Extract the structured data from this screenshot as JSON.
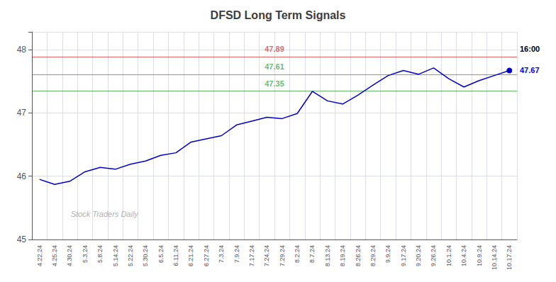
{
  "chart_data": {
    "type": "line",
    "title": "DFSD Long Term Signals",
    "categories": [
      "4.22.24",
      "4.25.24",
      "4.30.24",
      "5.3.24",
      "5.8.24",
      "5.14.24",
      "5.22.24",
      "5.30.24",
      "6.5.24",
      "6.11.24",
      "6.21.24",
      "6.27.24",
      "7.3.24",
      "7.9.24",
      "7.17.24",
      "7.24.24",
      "7.29.24",
      "8.2.24",
      "8.7.24",
      "8.13.24",
      "8.19.24",
      "8.26.24",
      "8.29.24",
      "9.9.24",
      "9.17.24",
      "9.20.24",
      "9.26.24",
      "10.1.24",
      "10.4.24",
      "10.9.24",
      "10.14.24",
      "10.17.24"
    ],
    "values": [
      45.95,
      45.87,
      45.92,
      46.07,
      46.14,
      46.11,
      46.19,
      46.24,
      46.33,
      46.37,
      46.54,
      46.59,
      46.64,
      46.81,
      46.87,
      46.93,
      46.91,
      46.99,
      47.34,
      47.19,
      47.14,
      47.28,
      47.44,
      47.59,
      47.67,
      47.61,
      47.71,
      47.54,
      47.41,
      47.51,
      47.59,
      47.67
    ],
    "color": "#0000cc",
    "ylim": [
      45,
      48.28
    ],
    "yticks": [
      45,
      46,
      47,
      48
    ],
    "grid": true,
    "reference_lines": [
      {
        "value": 47.89,
        "label": "47.89",
        "color": "#cc0000"
      },
      {
        "value": 47.61,
        "label": "47.61",
        "color": "#008800"
      },
      {
        "value": 47.35,
        "label": "47.35",
        "color": "#008800"
      }
    ],
    "annotations": [
      {
        "text": "16:00",
        "color": "#000000"
      },
      {
        "text": "47.67",
        "color": "#0000ee"
      },
      {
        "text": "Stock Traders Daily",
        "color": "#b0b0b0"
      }
    ]
  }
}
